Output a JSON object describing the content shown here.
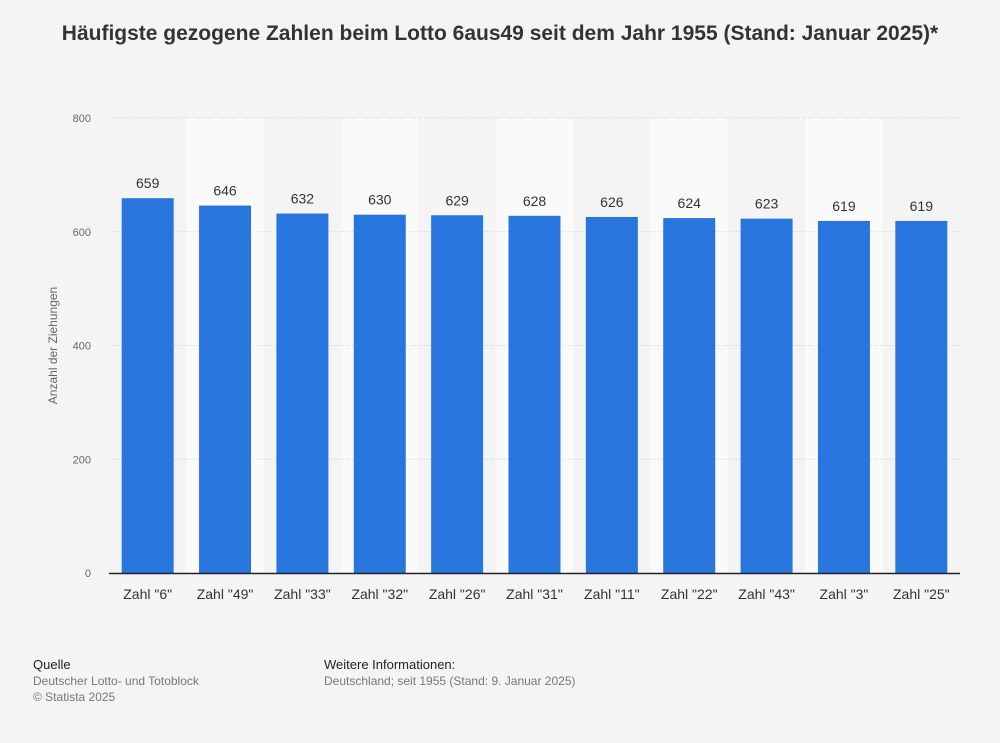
{
  "title": "Häufigste gezogene Zahlen beim Lotto 6aus49 seit dem Jahr 1955 (Stand: Januar 2025)*",
  "chart_data": {
    "type": "bar",
    "title": "Häufigste gezogene Zahlen beim Lotto 6aus49 seit dem Jahr 1955 (Stand: Januar 2025)*",
    "categories": [
      "Zahl \"6\"",
      "Zahl \"49\"",
      "Zahl \"33\"",
      "Zahl \"32\"",
      "Zahl \"26\"",
      "Zahl \"31\"",
      "Zahl \"11\"",
      "Zahl \"22\"",
      "Zahl \"43\"",
      "Zahl \"3\"",
      "Zahl \"25\""
    ],
    "values": [
      659,
      646,
      632,
      630,
      629,
      628,
      626,
      624,
      623,
      619,
      619
    ],
    "xlabel": "",
    "ylabel": "Anzahl der Ziehungen",
    "ylim": [
      0,
      800
    ],
    "yticks": [
      0,
      200,
      400,
      600,
      800
    ],
    "grid": true,
    "colors": {
      "bar": "#2876dd",
      "band": "#fafafa",
      "grid": "#cccccc",
      "axis": "#222222"
    }
  },
  "footer": {
    "source_heading": "Quelle",
    "source_line1": "Deutscher Lotto- und Totoblock",
    "source_line2": "© Statista 2025",
    "info_heading": "Weitere Informationen:",
    "info_line1": "Deutschland; seit 1955 (Stand: 9. Januar 2025)"
  }
}
